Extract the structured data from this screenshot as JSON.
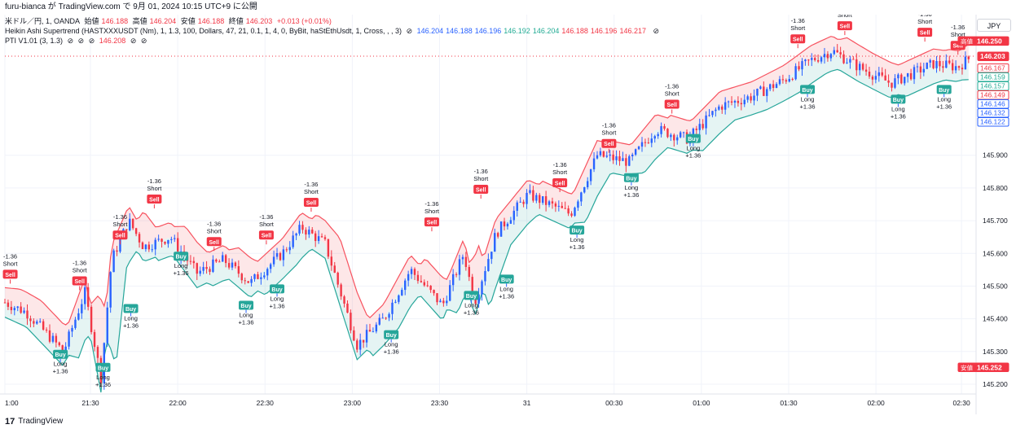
{
  "topbar": {
    "publish_text": "furu-bianca が TradingView.com で 9月 01, 2024 10:15 UTC+9 に公開"
  },
  "legend": {
    "row1": {
      "symbol": "米ドル／円, 1, OANDA",
      "open_label": "始値",
      "open_value": "146.188",
      "high_label": "高値",
      "high_value": "146.204",
      "low_label": "安値",
      "low_value": "146.188",
      "close_label": "終値",
      "close_value": "146.203",
      "change": "+0.013 (+0.01%)"
    },
    "row2": {
      "name": "Heikin Ashi Supertrend (HASTXXXUSDT (Nm), 1, 1.3, 100, Dollars, 47, 21, 0.1, 1, 4, 0, ByBit, haStEthUsdt, 1, Cross, , , 3)",
      "values": [
        "146.204",
        "146.188",
        "146.196",
        "146.192",
        "146.204",
        "146.188",
        "146.196",
        "146.217"
      ],
      "value_colors": [
        "#2962ff",
        "#2962ff",
        "#2962ff",
        "#22ab94",
        "#22ab94",
        "#f23645",
        "#f23645",
        "#f23645"
      ]
    },
    "row3": {
      "name": "PTI V1.01 (3, 1.3)",
      "value": "146.208"
    }
  },
  "currency_button": "JPY",
  "footer": {
    "logo_mark": "17",
    "brand": "TradingView"
  },
  "colors": {
    "bull": "#2962ff",
    "bear": "#f23645",
    "buy": "#26a69a",
    "sell": "#f23645",
    "upper_band": "#f7525f",
    "lower_band": "#26a69a"
  },
  "chart_data": {
    "type": "candlestick",
    "y_ticks": [
      "145.200",
      "145.300",
      "145.400",
      "145.500",
      "145.600",
      "145.700",
      "145.800",
      "145.900"
    ],
    "ylim": [
      145.17,
      146.33
    ],
    "x_ticks": [
      "1:00",
      "21:30",
      "22:00",
      "22:30",
      "23:00",
      "23:30",
      "31",
      "00:30",
      "01:00",
      "01:30",
      "02:00",
      "02:30"
    ],
    "close_path": [
      {
        "t": 0,
        "v": 145.45
      },
      {
        "t": 20,
        "v": 145.42
      },
      {
        "t": 55,
        "v": 145.3
      },
      {
        "t": 75,
        "v": 145.48
      },
      {
        "t": 90,
        "v": 145.22
      },
      {
        "t": 100,
        "v": 145.58
      },
      {
        "t": 116,
        "v": 145.7
      },
      {
        "t": 130,
        "v": 145.62
      },
      {
        "t": 155,
        "v": 145.65
      },
      {
        "t": 180,
        "v": 145.54
      },
      {
        "t": 205,
        "v": 145.58
      },
      {
        "t": 230,
        "v": 145.51
      },
      {
        "t": 260,
        "v": 145.6
      },
      {
        "t": 278,
        "v": 145.68
      },
      {
        "t": 300,
        "v": 145.63
      },
      {
        "t": 330,
        "v": 145.32
      },
      {
        "t": 355,
        "v": 145.4
      },
      {
        "t": 380,
        "v": 145.55
      },
      {
        "t": 410,
        "v": 145.44
      },
      {
        "t": 430,
        "v": 145.6
      },
      {
        "t": 440,
        "v": 145.45
      },
      {
        "t": 460,
        "v": 145.66
      },
      {
        "t": 490,
        "v": 145.78
      },
      {
        "t": 530,
        "v": 145.72
      },
      {
        "t": 555,
        "v": 145.9
      },
      {
        "t": 585,
        "v": 145.88
      },
      {
        "t": 610,
        "v": 145.98
      },
      {
        "t": 640,
        "v": 145.95
      },
      {
        "t": 670,
        "v": 146.05
      },
      {
        "t": 700,
        "v": 146.08
      },
      {
        "t": 730,
        "v": 146.13
      },
      {
        "t": 755,
        "v": 146.19
      },
      {
        "t": 775,
        "v": 146.22
      },
      {
        "t": 800,
        "v": 146.17
      },
      {
        "t": 830,
        "v": 146.12
      },
      {
        "t": 850,
        "v": 146.15
      },
      {
        "t": 870,
        "v": 146.18
      },
      {
        "t": 893,
        "v": 146.17
      },
      {
        "t": 905,
        "v": 146.2
      }
    ],
    "signals": [
      {
        "kind": "sell",
        "t": 5,
        "v": 145.5,
        "tag": "Sell",
        "pnl": "-1.36",
        "side": "Short"
      },
      {
        "kind": "buy",
        "t": 52,
        "v": 145.32,
        "tag": "Buy",
        "pnl": "+1.36",
        "side": "Long"
      },
      {
        "kind": "sell",
        "t": 70,
        "v": 145.48,
        "tag": "Sell",
        "pnl": "-1.36",
        "side": "Short"
      },
      {
        "kind": "buy",
        "t": 92,
        "v": 145.28,
        "tag": "Buy",
        "pnl": "+1.36",
        "side": "Long"
      },
      {
        "kind": "sell",
        "t": 108,
        "v": 145.62,
        "tag": "Sell",
        "pnl": "-1.36",
        "side": "Short"
      },
      {
        "kind": "buy",
        "t": 118,
        "v": 145.46,
        "tag": "Buy",
        "pnl": "+1.36",
        "side": "Long"
      },
      {
        "kind": "sell",
        "t": 140,
        "v": 145.73,
        "tag": "Sell",
        "pnl": "-1.36",
        "side": "Short"
      },
      {
        "kind": "buy",
        "t": 165,
        "v": 145.62,
        "tag": "Buy",
        "pnl": "+1.36",
        "side": "Long"
      },
      {
        "kind": "sell",
        "t": 196,
        "v": 145.6,
        "tag": "Sell",
        "pnl": "-1.36",
        "side": "Short"
      },
      {
        "kind": "buy",
        "t": 226,
        "v": 145.47,
        "tag": "Buy",
        "pnl": "+1.36",
        "side": "Long"
      },
      {
        "kind": "sell",
        "t": 245,
        "v": 145.62,
        "tag": "Sell",
        "pnl": "-1.36",
        "side": "Short"
      },
      {
        "kind": "buy",
        "t": 255,
        "v": 145.52,
        "tag": "Buy",
        "pnl": "+1.36",
        "side": "Long"
      },
      {
        "kind": "sell",
        "t": 287,
        "v": 145.72,
        "tag": "Sell",
        "pnl": "-1.36",
        "side": "Short"
      },
      {
        "kind": "buy",
        "t": 362,
        "v": 145.38,
        "tag": "Buy",
        "pnl": "+1.36",
        "side": "Long"
      },
      {
        "kind": "sell",
        "t": 400,
        "v": 145.66,
        "tag": "Sell",
        "pnl": "-1.36",
        "side": "Short"
      },
      {
        "kind": "buy",
        "t": 437,
        "v": 145.5,
        "tag": "Buy",
        "pnl": "+1.36",
        "side": "Long"
      },
      {
        "kind": "sell",
        "t": 446,
        "v": 145.76,
        "tag": "Sell",
        "pnl": "-1.36",
        "side": "Short"
      },
      {
        "kind": "buy",
        "t": 470,
        "v": 145.55,
        "tag": "Buy",
        "pnl": "+1.36",
        "side": "Long"
      },
      {
        "kind": "sell",
        "t": 520,
        "v": 145.78,
        "tag": "Sell",
        "pnl": "-1.36",
        "side": "Short"
      },
      {
        "kind": "buy",
        "t": 536,
        "v": 145.7,
        "tag": "Buy",
        "pnl": "+1.36",
        "side": "Long"
      },
      {
        "kind": "sell",
        "t": 566,
        "v": 145.9,
        "tag": "Sell",
        "pnl": "-1.36",
        "side": "Short"
      },
      {
        "kind": "buy",
        "t": 587,
        "v": 145.86,
        "tag": "Buy",
        "pnl": "+1.36",
        "side": "Long"
      },
      {
        "kind": "sell",
        "t": 625,
        "v": 146.02,
        "tag": "Sell",
        "pnl": "-1.36",
        "side": "Short"
      },
      {
        "kind": "buy",
        "t": 645,
        "v": 145.98,
        "tag": "Buy",
        "pnl": "+1.36",
        "side": "Long"
      },
      {
        "kind": "sell",
        "t": 743,
        "v": 146.22,
        "tag": "Sell",
        "pnl": "-1.36",
        "side": "Short"
      },
      {
        "kind": "buy",
        "t": 752,
        "v": 146.13,
        "tag": "Buy",
        "pnl": "+1.36",
        "side": "Long"
      },
      {
        "kind": "sell",
        "t": 787,
        "v": 146.26,
        "tag": "Sell",
        "pnl": "-1.36",
        "side": "Short"
      },
      {
        "kind": "buy",
        "t": 837,
        "v": 146.1,
        "tag": "Buy",
        "pnl": "+1.36",
        "side": "Long"
      },
      {
        "kind": "sell",
        "t": 862,
        "v": 146.24,
        "tag": "Sell",
        "pnl": "-1.36",
        "side": "Short"
      },
      {
        "kind": "buy",
        "t": 880,
        "v": 146.13,
        "tag": "Buy",
        "pnl": "+1.36",
        "side": "Long"
      },
      {
        "kind": "sell",
        "t": 893,
        "v": 146.2,
        "tag": "Sell",
        "pnl": "-1.36",
        "side": "Short"
      }
    ],
    "price_labels": [
      {
        "value": 146.25,
        "text": "146.250",
        "prefix": "高値",
        "style": "solid",
        "color": "#f23645"
      },
      {
        "value": 146.203,
        "text": "146.203",
        "prefix": "",
        "style": "solid",
        "color": "#f23645"
      },
      {
        "value": 146.167,
        "text": "146.167",
        "prefix": "",
        "style": "outline",
        "color": "#f23645"
      },
      {
        "value": 146.159,
        "text": "146.159",
        "prefix": "",
        "style": "outline",
        "color": "#22ab94"
      },
      {
        "value": 146.157,
        "text": "146.157",
        "prefix": "",
        "style": "outline",
        "color": "#22ab94"
      },
      {
        "value": 146.149,
        "text": "146.149",
        "prefix": "",
        "style": "outline",
        "color": "#f23645"
      },
      {
        "value": 146.146,
        "text": "146.146",
        "prefix": "",
        "style": "outline",
        "color": "#2962ff"
      },
      {
        "value": 146.132,
        "text": "146.132",
        "prefix": "",
        "style": "outline",
        "color": "#2962ff"
      },
      {
        "value": 146.122,
        "text": "146.122",
        "prefix": "",
        "style": "outline",
        "color": "#2962ff"
      },
      {
        "value": 145.252,
        "text": "145.252",
        "prefix": "安値",
        "style": "solid",
        "color": "#f23645"
      }
    ]
  }
}
